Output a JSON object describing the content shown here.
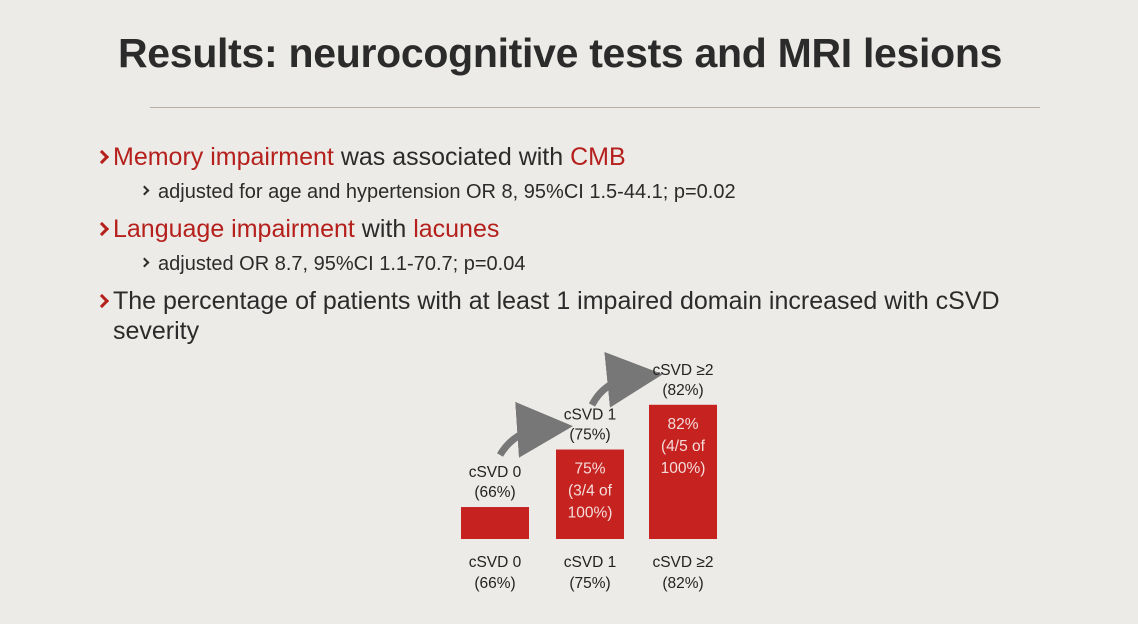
{
  "header": {
    "title": "Results: neurocognitive tests and MRI lesions"
  },
  "bullets": [
    {
      "segments": [
        {
          "text": "Memory impairment",
          "red": true
        },
        {
          "text": " was associated with "
        },
        {
          "text": "CMB",
          "red": true
        }
      ],
      "sub": "adjusted for age and hypertension OR 8, 95%CI 1.5-44.1; p=0.02"
    },
    {
      "segments": [
        {
          "text": "Language impairment",
          "red": true
        },
        {
          "text": " with "
        },
        {
          "text": "lacunes",
          "red": true
        }
      ],
      "sub": "adjusted OR 8.7, 95%CI 1.1-70.7; p=0.04"
    },
    {
      "segments": [
        {
          "text": "The percentage of patients with at least 1 impaired domain increased with cSVD severity"
        }
      ]
    }
  ],
  "chart_data": {
    "type": "bar",
    "categories": [
      "cSVD 0",
      "cSVD 1",
      "cSVD ≥2"
    ],
    "values": [
      66,
      75,
      82
    ],
    "value_labels": [
      "(66%)",
      "(75%)",
      "(82%)"
    ],
    "inner_labels": [
      null,
      [
        "75%",
        "(3/4 of",
        "100%)"
      ],
      [
        "82%",
        "(4/5 of",
        "100%)"
      ]
    ],
    "color": "#c62320",
    "ylim": [
      61,
      84
    ]
  }
}
